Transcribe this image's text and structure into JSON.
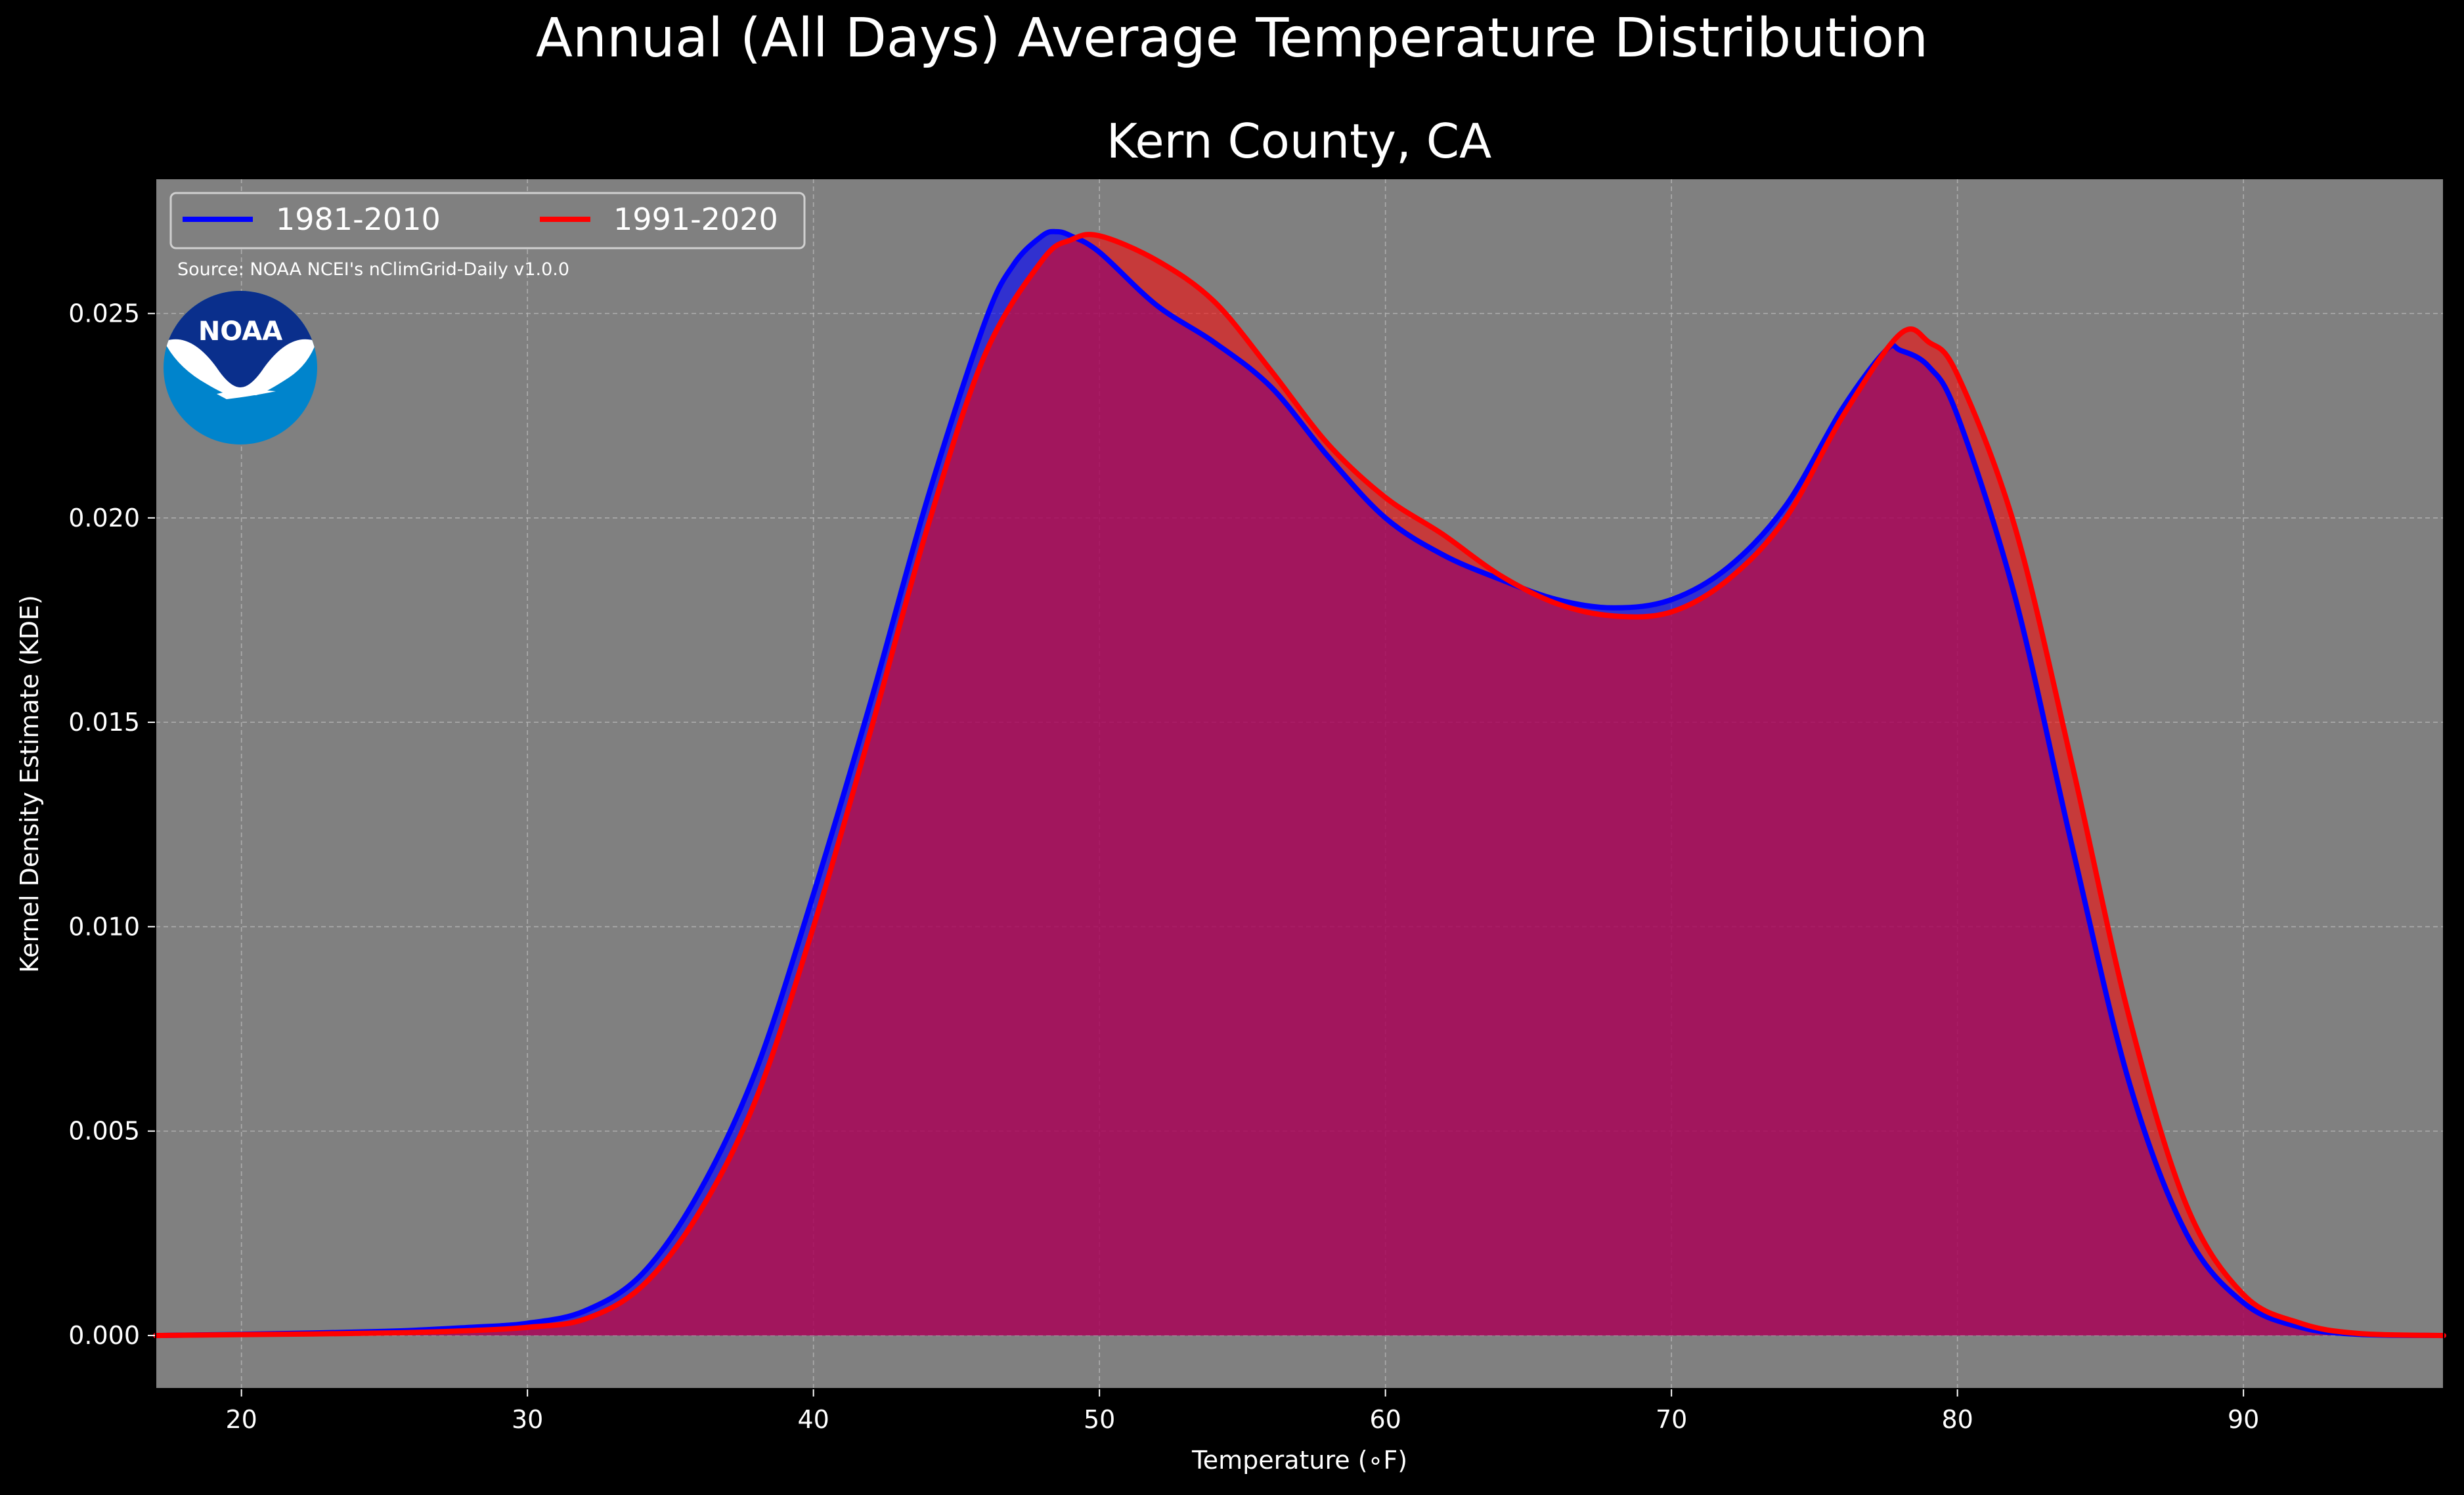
{
  "colors": {
    "figure_background": "#000000",
    "plot_background": "#808080",
    "series_1": "#0000ff",
    "series_2": "#ff0000",
    "overlap_fill": "#9e1e5a",
    "text": "#ffffff",
    "grid": "#b8b8b8"
  },
  "noaa_logo": {
    "text": "NOAA",
    "dark_blue": "#0a2f8c",
    "light_blue": "#0084cc"
  },
  "chart_data": {
    "type": "area",
    "suptitle": "Annual (All Days) Average Temperature Distribution",
    "title": "Kern County, CA",
    "xlabel": "Temperature (∘F)",
    "ylabel": "Kernel Density Estimate (KDE)",
    "source": "Source: NOAA NCEI's nClimGrid-Daily v1.0.0",
    "xlim": [
      17,
      97
    ],
    "ylim": [
      -0.0013,
      0.0283
    ],
    "xticks": [
      20,
      30,
      40,
      50,
      60,
      70,
      80,
      90
    ],
    "yticks": [
      0.0,
      0.005,
      0.01,
      0.015,
      0.02,
      0.025
    ],
    "ytick_labels": [
      "0.000",
      "0.005",
      "0.010",
      "0.015",
      "0.020",
      "0.025"
    ],
    "grid": true,
    "legend": {
      "placement": "top-left",
      "columns": 2
    },
    "series": [
      {
        "name": "1981-2010",
        "color": "#0000ff",
        "x": [
          17,
          20,
          25,
          28,
          30,
          32,
          34,
          36,
          38,
          40,
          42,
          44,
          46,
          47,
          48,
          48.5,
          49,
          50,
          52,
          54,
          56,
          58,
          60,
          62,
          64,
          66,
          68,
          70,
          72,
          74,
          76,
          77.5,
          78,
          79,
          80,
          82,
          84,
          86,
          88,
          90,
          92,
          94,
          97
        ],
        "y": [
          0.0,
          3e-05,
          0.0001,
          0.0002,
          0.0003,
          0.0006,
          0.0015,
          0.0035,
          0.0065,
          0.0108,
          0.0155,
          0.0205,
          0.0248,
          0.0262,
          0.0269,
          0.027,
          0.0269,
          0.0265,
          0.0252,
          0.0243,
          0.0232,
          0.0215,
          0.02,
          0.0191,
          0.0185,
          0.018,
          0.0178,
          0.018,
          0.0188,
          0.0203,
          0.0227,
          0.0241,
          0.0241,
          0.0237,
          0.0225,
          0.0181,
          0.012,
          0.0062,
          0.0025,
          0.0008,
          0.0002,
          3e-05,
          0.0
        ]
      },
      {
        "name": "1991-2020",
        "color": "#ff0000",
        "x": [
          17,
          20,
          25,
          28,
          30,
          32,
          34,
          36,
          38,
          40,
          42,
          44,
          46,
          48,
          49,
          50,
          52,
          54,
          56,
          58,
          60,
          62,
          64,
          66,
          68,
          70,
          72,
          74,
          76,
          78,
          79,
          80,
          82,
          84,
          86,
          88,
          90,
          92,
          94,
          97
        ],
        "y": [
          0.0,
          2e-05,
          6e-05,
          0.00012,
          0.0002,
          0.0004,
          0.0012,
          0.003,
          0.0058,
          0.01,
          0.0148,
          0.0198,
          0.024,
          0.0263,
          0.0268,
          0.0269,
          0.0263,
          0.0253,
          0.0236,
          0.0218,
          0.0205,
          0.0196,
          0.0186,
          0.0179,
          0.0176,
          0.0177,
          0.0185,
          0.02,
          0.0225,
          0.0245,
          0.0243,
          0.0235,
          0.0198,
          0.014,
          0.0078,
          0.0032,
          0.001,
          0.0003,
          5e-05,
          0.0
        ]
      }
    ]
  }
}
